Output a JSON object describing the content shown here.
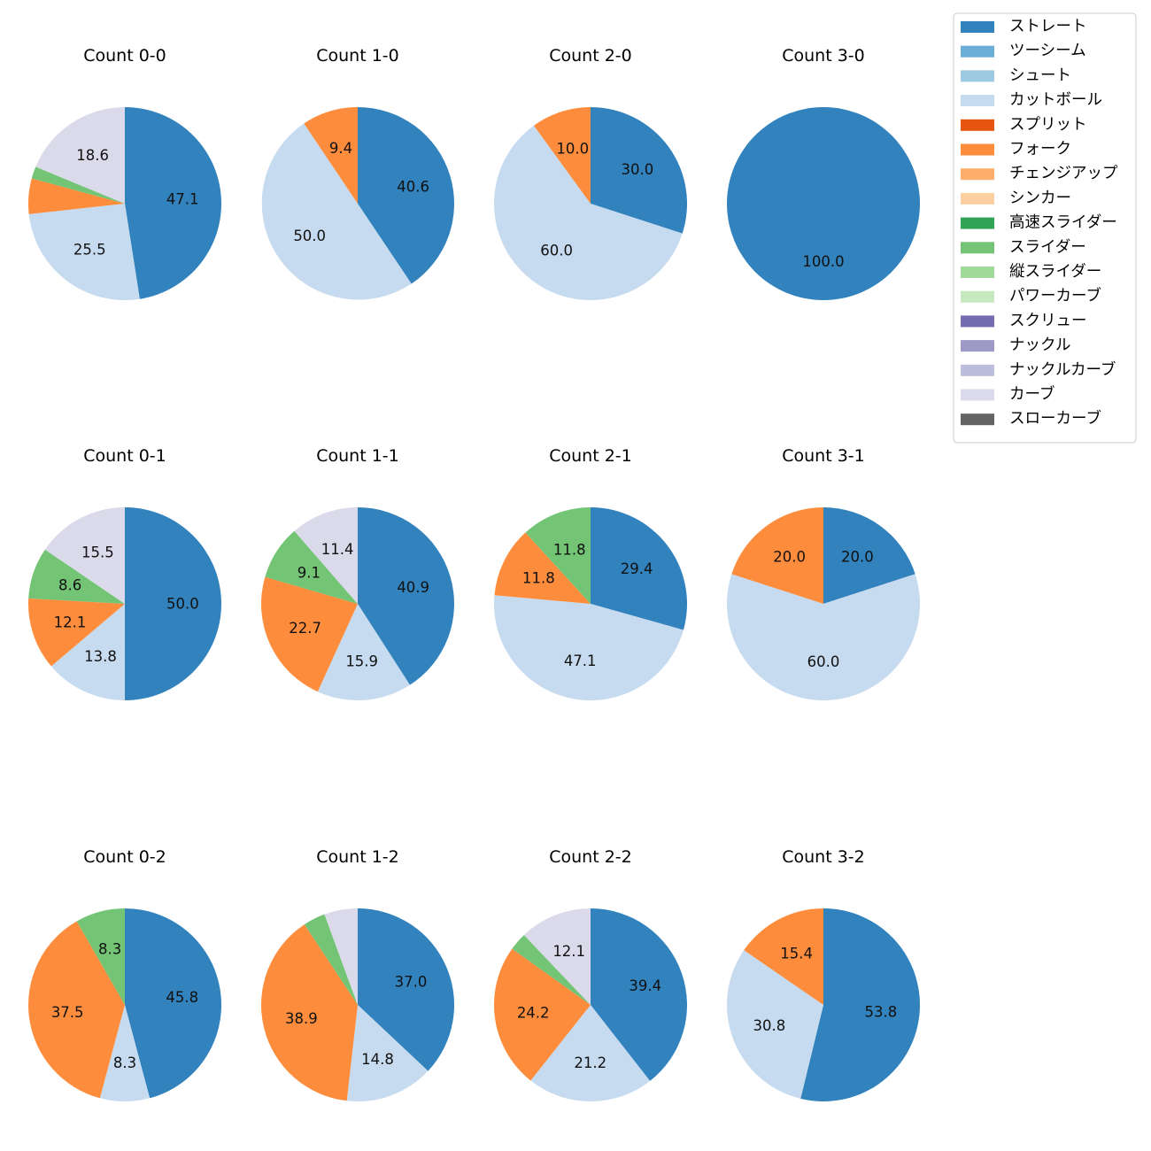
{
  "chart_data": {
    "type": "pie",
    "legend_position": "top-right",
    "categories": [
      "ストレート",
      "ツーシーム",
      "シュート",
      "カットボール",
      "スプリット",
      "フォーク",
      "チェンジアップ",
      "シンカー",
      "高速スライダー",
      "スライダー",
      "縦スライダー",
      "パワーカーブ",
      "スクリュー",
      "ナックル",
      "ナックルカーブ",
      "カーブ",
      "スローカーブ"
    ],
    "colors": [
      "#3182bd",
      "#6baed6",
      "#9ecae1",
      "#c6dbef",
      "#e6550d",
      "#fd8d3c",
      "#fdae6b",
      "#fdd0a2",
      "#31a354",
      "#74c476",
      "#a1d99b",
      "#c7e9c0",
      "#756bb1",
      "#9e9ac8",
      "#bcbddc",
      "#dadaeb",
      "#636363"
    ],
    "charts": [
      {
        "title": "Count 0-0",
        "slices": [
          {
            "category": "ストレート",
            "value": 47.1,
            "label": "47.1"
          },
          {
            "category": "カットボール",
            "value": 25.5,
            "label": "25.5"
          },
          {
            "category": "フォーク",
            "value": 5.9,
            "label": ""
          },
          {
            "category": "スライダー",
            "value": 2.0,
            "label": ""
          },
          {
            "category": "カーブ",
            "value": 18.6,
            "label": "18.6"
          }
        ]
      },
      {
        "title": "Count 1-0",
        "slices": [
          {
            "category": "ストレート",
            "value": 40.6,
            "label": "40.6"
          },
          {
            "category": "カットボール",
            "value": 50.0,
            "label": "50.0"
          },
          {
            "category": "フォーク",
            "value": 9.4,
            "label": "9.4"
          }
        ]
      },
      {
        "title": "Count 2-0",
        "slices": [
          {
            "category": "ストレート",
            "value": 30.0,
            "label": "30.0"
          },
          {
            "category": "カットボール",
            "value": 60.0,
            "label": "60.0"
          },
          {
            "category": "フォーク",
            "value": 10.0,
            "label": "10.0"
          }
        ]
      },
      {
        "title": "Count 3-0",
        "slices": [
          {
            "category": "ストレート",
            "value": 100.0,
            "label": "100.0"
          }
        ]
      },
      {
        "title": "Count 0-1",
        "slices": [
          {
            "category": "ストレート",
            "value": 50.0,
            "label": "50.0"
          },
          {
            "category": "カットボール",
            "value": 13.8,
            "label": "13.8"
          },
          {
            "category": "フォーク",
            "value": 12.1,
            "label": "12.1"
          },
          {
            "category": "スライダー",
            "value": 8.6,
            "label": "8.6"
          },
          {
            "category": "カーブ",
            "value": 15.5,
            "label": "15.5"
          }
        ]
      },
      {
        "title": "Count 1-1",
        "slices": [
          {
            "category": "ストレート",
            "value": 40.9,
            "label": "40.9"
          },
          {
            "category": "カットボール",
            "value": 15.9,
            "label": "15.9"
          },
          {
            "category": "フォーク",
            "value": 22.7,
            "label": "22.7"
          },
          {
            "category": "スライダー",
            "value": 9.1,
            "label": "9.1"
          },
          {
            "category": "カーブ",
            "value": 11.4,
            "label": "11.4"
          }
        ]
      },
      {
        "title": "Count 2-1",
        "slices": [
          {
            "category": "ストレート",
            "value": 29.4,
            "label": "29.4"
          },
          {
            "category": "カットボール",
            "value": 47.1,
            "label": "47.1"
          },
          {
            "category": "フォーク",
            "value": 11.8,
            "label": "11.8"
          },
          {
            "category": "スライダー",
            "value": 11.8,
            "label": "11.8"
          }
        ]
      },
      {
        "title": "Count 3-1",
        "slices": [
          {
            "category": "ストレート",
            "value": 20.0,
            "label": "20.0"
          },
          {
            "category": "カットボール",
            "value": 60.0,
            "label": "60.0"
          },
          {
            "category": "フォーク",
            "value": 20.0,
            "label": "20.0"
          }
        ]
      },
      {
        "title": "Count 0-2",
        "slices": [
          {
            "category": "ストレート",
            "value": 45.8,
            "label": "45.8"
          },
          {
            "category": "カットボール",
            "value": 8.3,
            "label": "8.3"
          },
          {
            "category": "フォーク",
            "value": 37.5,
            "label": "37.5"
          },
          {
            "category": "スライダー",
            "value": 8.3,
            "label": "8.3"
          }
        ]
      },
      {
        "title": "Count 1-2",
        "slices": [
          {
            "category": "ストレート",
            "value": 37.0,
            "label": "37.0"
          },
          {
            "category": "カットボール",
            "value": 14.8,
            "label": "14.8"
          },
          {
            "category": "フォーク",
            "value": 38.9,
            "label": "38.9"
          },
          {
            "category": "スライダー",
            "value": 3.7,
            "label": ""
          },
          {
            "category": "カーブ",
            "value": 5.6,
            "label": ""
          }
        ]
      },
      {
        "title": "Count 2-2",
        "slices": [
          {
            "category": "ストレート",
            "value": 39.4,
            "label": "39.4"
          },
          {
            "category": "カットボール",
            "value": 21.2,
            "label": "21.2"
          },
          {
            "category": "フォーク",
            "value": 24.2,
            "label": "24.2"
          },
          {
            "category": "スライダー",
            "value": 3.0,
            "label": ""
          },
          {
            "category": "カーブ",
            "value": 12.1,
            "label": "12.1"
          }
        ]
      },
      {
        "title": "Count 3-2",
        "slices": [
          {
            "category": "ストレート",
            "value": 53.8,
            "label": "53.8"
          },
          {
            "category": "カットボール",
            "value": 30.8,
            "label": "30.8"
          },
          {
            "category": "フォーク",
            "value": 15.4,
            "label": "15.4"
          }
        ]
      }
    ]
  }
}
